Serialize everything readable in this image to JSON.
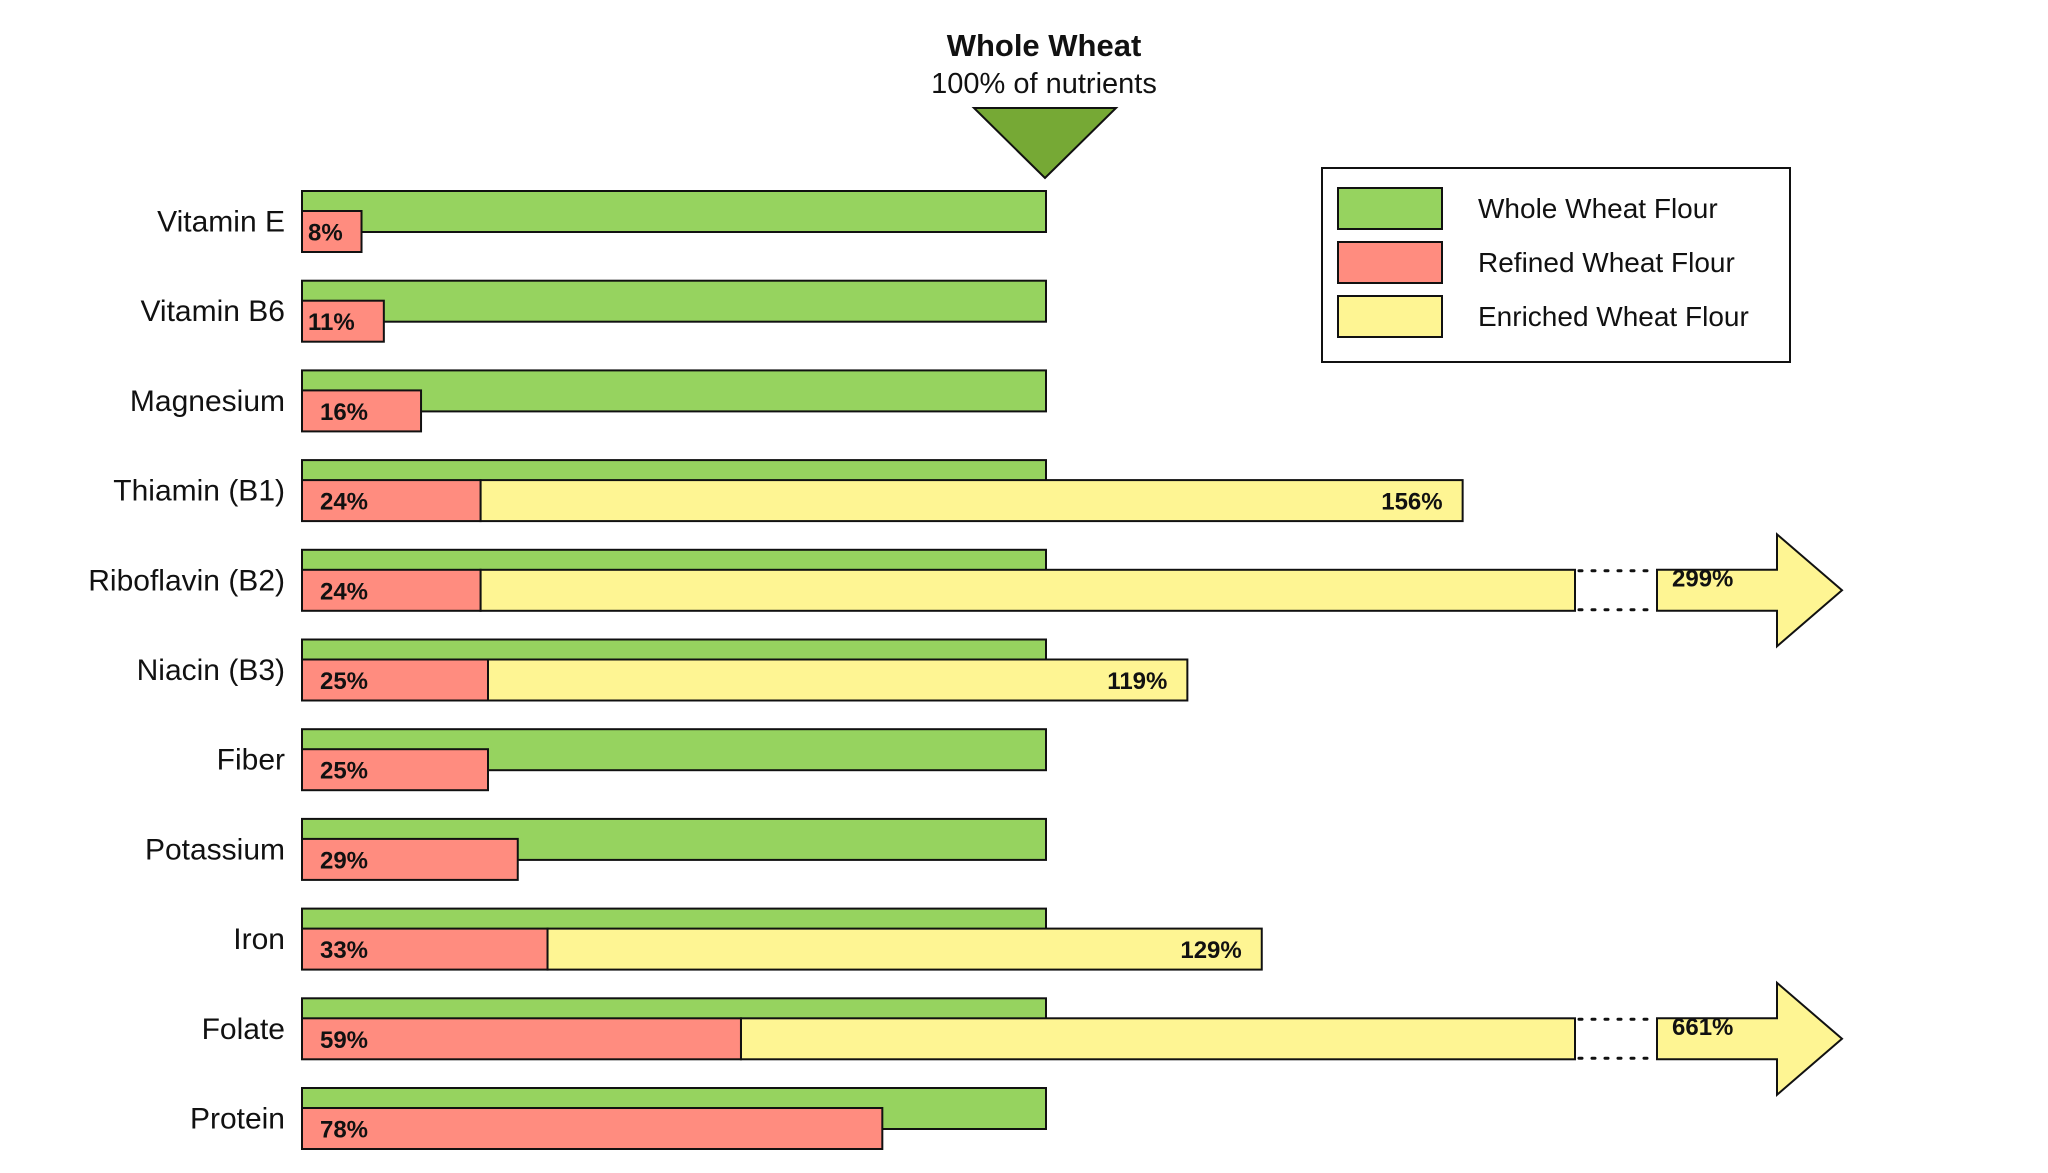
{
  "chart_data": {
    "type": "bar",
    "title": "Whole Wheat",
    "subtitle": "100% of nutrients",
    "colors": {
      "whole": "#96d35f",
      "refined": "#ff8c7f",
      "enriched": "#fef593",
      "marker": "#76a935",
      "stroke": "#111111"
    },
    "legend": {
      "placement": "top-right",
      "entries": [
        {
          "key": "whole",
          "label": "Whole Wheat Flour"
        },
        {
          "key": "refined",
          "label": "Refined Wheat Flour"
        },
        {
          "key": "enriched",
          "label": "Enriched Wheat Flour"
        }
      ]
    },
    "categories": [
      "Vitamin E",
      "Vitamin B6",
      "Magnesium",
      "Thiamin (B1)",
      "Riboflavin (B2)",
      "Niacin (B3)",
      "Fiber",
      "Potassium",
      "Iron",
      "Folate",
      "Protein"
    ],
    "series": [
      {
        "name": "Whole Wheat Flour",
        "key": "whole",
        "values": [
          100,
          100,
          100,
          100,
          100,
          100,
          100,
          100,
          100,
          100,
          100
        ]
      },
      {
        "name": "Refined Wheat Flour",
        "key": "refined",
        "values": [
          8,
          11,
          16,
          24,
          24,
          25,
          25,
          29,
          33,
          59,
          78
        ],
        "labels": [
          "8%",
          "11%",
          "16%",
          "24%",
          "24%",
          "25%",
          "25%",
          "29%",
          "33%",
          "59%",
          "78%"
        ]
      },
      {
        "name": "Enriched Wheat Flour",
        "key": "enriched",
        "values": [
          null,
          null,
          null,
          156,
          299,
          119,
          null,
          null,
          129,
          661,
          null
        ],
        "labels": [
          null,
          null,
          null,
          "156%",
          "299%",
          "119%",
          null,
          null,
          "129%",
          "661%",
          null
        ]
      }
    ],
    "xlim": [
      0,
      100
    ],
    "axis_break_note": [
      "Riboflavin (B2)",
      "Folate"
    ]
  }
}
